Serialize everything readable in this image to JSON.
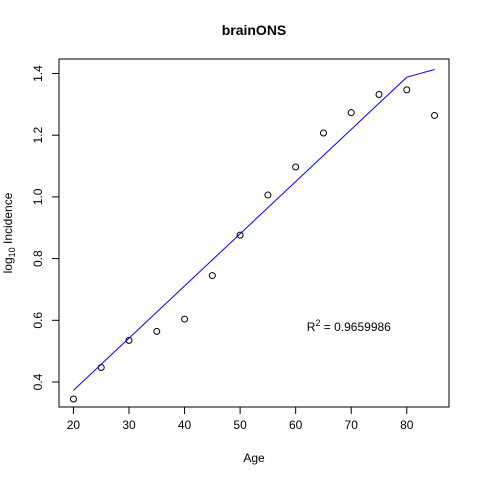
{
  "chart_data": {
    "type": "scatter",
    "title": "brainONS",
    "xlabel": "Age",
    "ylabel": {
      "prefix": "log",
      "subscript": "10",
      "suffix": " Incidence"
    },
    "xlim": [
      17.4,
      87.6
    ],
    "ylim": [
      0.319,
      1.447
    ],
    "x_ticks": [
      20,
      30,
      40,
      50,
      60,
      70,
      80
    ],
    "y_ticks": [
      0.4,
      0.6,
      0.8,
      1.0,
      1.2,
      1.4
    ],
    "y_tick_labels": [
      "0.4",
      "0.6",
      "0.8",
      "1.0",
      "1.2",
      "1.4"
    ],
    "grid": false,
    "series": [
      {
        "marker": "open-circle",
        "color": "#000000",
        "x": [
          20,
          25,
          30,
          35,
          40,
          45,
          50,
          55,
          60,
          65,
          70,
          75,
          80,
          85
        ],
        "y": [
          0.345,
          0.447,
          0.535,
          0.564,
          0.604,
          0.745,
          0.876,
          1.006,
          1.097,
          1.207,
          1.273,
          1.332,
          1.347,
          1.264
        ]
      },
      {
        "marker": "line",
        "color": "#0000ff",
        "x": [
          20,
          80,
          85
        ],
        "y": [
          0.373,
          1.388,
          1.413
        ]
      }
    ],
    "annotation": {
      "base": "R",
      "superscript": "2",
      "text": " = 0.9659986",
      "x": 62,
      "y": 0.565
    }
  }
}
